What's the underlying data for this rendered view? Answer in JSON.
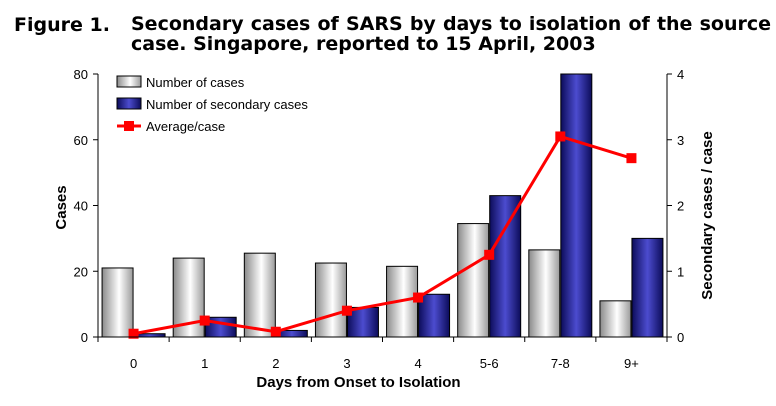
{
  "figure": {
    "label": "Figure 1.",
    "title": "Secondary cases of SARS by days to isolation of the source case.  Singapore, reported to 15 April, 2003"
  },
  "chart_data": {
    "type": "bar",
    "title": "Secondary cases of SARS by days to isolation of the source case.  Singapore, reported to 15 April, 2003",
    "xlabel": "Days from Onset to Isolation",
    "ylabel": "Cases",
    "y2label": "Secondary cases / case",
    "categories": [
      "0",
      "1",
      "2",
      "3",
      "4",
      "5-6",
      "7-8",
      "9+"
    ],
    "ylim": [
      0,
      80
    ],
    "y2lim": [
      0,
      4
    ],
    "yticks": [
      0,
      20,
      40,
      60,
      80
    ],
    "y2ticks": [
      0,
      1,
      2,
      3,
      4
    ],
    "grid": false,
    "legend_position": "top-left",
    "series": [
      {
        "name": "Number of cases",
        "type": "bar",
        "axis": "left",
        "color": "#e6e6e6",
        "values": [
          21,
          24,
          25.5,
          22.5,
          21.5,
          34.5,
          26.5,
          11
        ]
      },
      {
        "name": "Number of secondary cases",
        "type": "bar",
        "axis": "left",
        "color": "#2a2aa0",
        "values": [
          1,
          6,
          2,
          9,
          13,
          43,
          80,
          30
        ]
      },
      {
        "name": "Average/case",
        "type": "line",
        "axis": "right",
        "color": "#ff0000",
        "values": [
          0.05,
          0.25,
          0.08,
          0.4,
          0.6,
          1.25,
          3.05,
          2.72
        ]
      }
    ]
  }
}
